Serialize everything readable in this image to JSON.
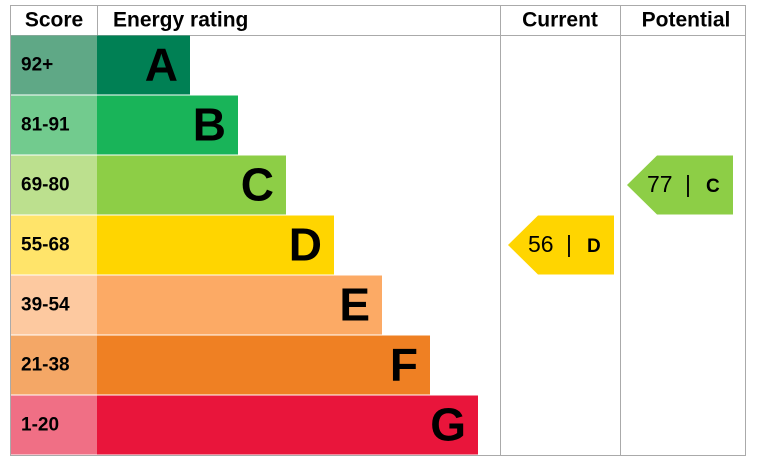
{
  "chart_data": {
    "type": "epc",
    "headers": {
      "score": "Score",
      "rating": "Energy rating",
      "current": "Current",
      "potential": "Potential"
    },
    "bands": [
      {
        "score": "92+",
        "letter": "A",
        "color": "#008054",
        "score_color": "#5fa886"
      },
      {
        "score": "81-91",
        "letter": "B",
        "color": "#19b459",
        "score_color": "#72cb8e"
      },
      {
        "score": "69-80",
        "letter": "C",
        "color": "#8dce46",
        "score_color": "#bce08e"
      },
      {
        "score": "55-68",
        "letter": "D",
        "color": "#ffd500",
        "score_color": "#ffe46a"
      },
      {
        "score": "39-54",
        "letter": "E",
        "color": "#fcaa65",
        "score_color": "#fdc9a0"
      },
      {
        "score": "21-38",
        "letter": "F",
        "color": "#ef8023",
        "score_color": "#f4a766"
      },
      {
        "score": "1-20",
        "letter": "G",
        "color": "#e9153b",
        "score_color": "#f06f85"
      }
    ],
    "current": {
      "value": 56,
      "letter": "D",
      "separator": "|"
    },
    "potential": {
      "value": 77,
      "letter": "C",
      "separator": "|"
    }
  }
}
